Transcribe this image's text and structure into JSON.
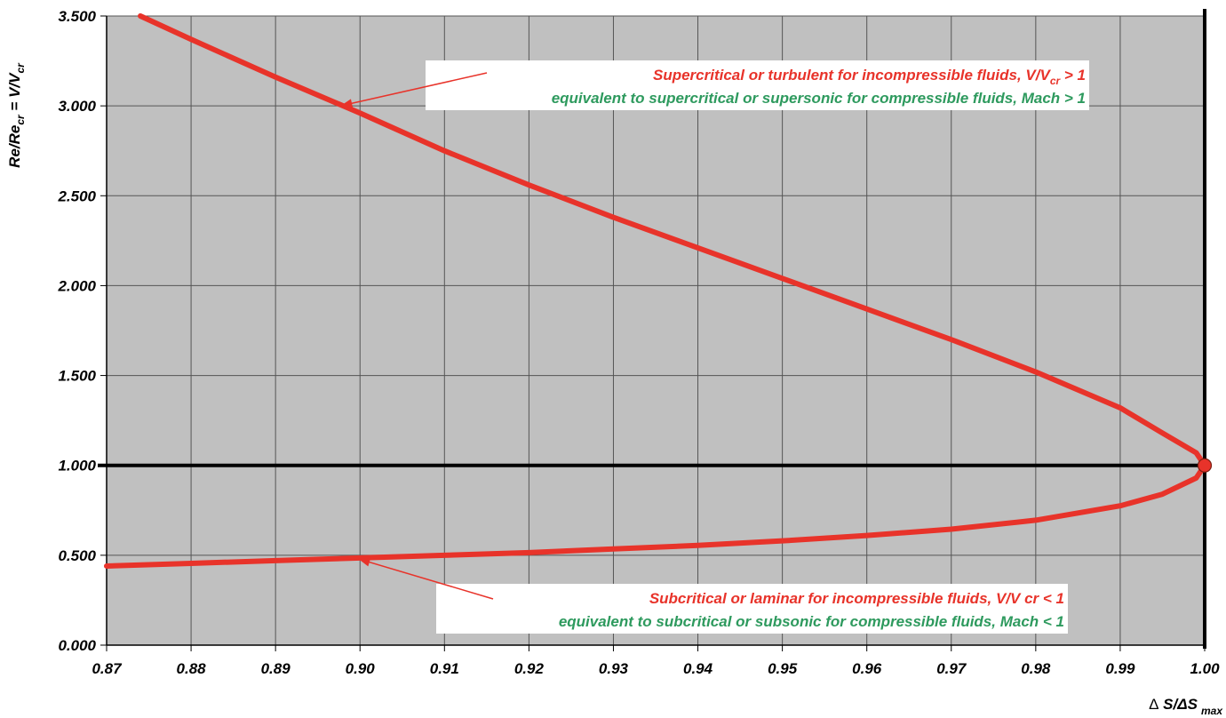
{
  "chart_data": {
    "type": "line",
    "x_axis": {
      "ticks": [
        0.87,
        0.88,
        0.89,
        0.9,
        0.91,
        0.92,
        0.93,
        0.94,
        0.95,
        0.96,
        0.97,
        0.98,
        0.99,
        1.0
      ],
      "tick_labels": [
        "0.87",
        "0.88",
        "0.89",
        "0.90",
        "0.91",
        "0.92",
        "0.93",
        "0.94",
        "0.95",
        "0.96",
        "0.97",
        "0.98",
        "0.99",
        "1.00"
      ],
      "range": [
        0.87,
        1.0
      ],
      "label": {
        "symbol": "Δ",
        "main": " S/ΔS",
        "subscript": "max"
      }
    },
    "y_axis": {
      "ticks": [
        0.0,
        0.5,
        1.0,
        1.5,
        2.0,
        2.5,
        3.0,
        3.5
      ],
      "tick_labels": [
        "0.000",
        "0.500",
        "1.000",
        "1.500",
        "2.000",
        "2.500",
        "3.000",
        "3.500"
      ],
      "range": [
        0.0,
        3.5
      ],
      "label": {
        "part1": "Re/Re",
        "sub1": "cr",
        "part2": " = V/V",
        "sub2": "cr"
      }
    },
    "grid": true,
    "plot_background": "#c0c0c0",
    "series": [
      {
        "color": "#e8332a",
        "points": [
          [
            0.87,
            0.44
          ],
          [
            0.88,
            0.455
          ],
          [
            0.89,
            0.47
          ],
          [
            0.9,
            0.485
          ],
          [
            0.91,
            0.5
          ],
          [
            0.92,
            0.515
          ],
          [
            0.93,
            0.535
          ],
          [
            0.94,
            0.555
          ],
          [
            0.95,
            0.58
          ],
          [
            0.96,
            0.61
          ],
          [
            0.97,
            0.645
          ],
          [
            0.98,
            0.695
          ],
          [
            0.99,
            0.775
          ],
          [
            0.995,
            0.84
          ],
          [
            0.999,
            0.93
          ],
          [
            1.0,
            1.0
          ],
          [
            0.999,
            1.07
          ],
          [
            0.995,
            1.18
          ],
          [
            0.99,
            1.32
          ],
          [
            0.98,
            1.52
          ],
          [
            0.97,
            1.7
          ],
          [
            0.96,
            1.87
          ],
          [
            0.95,
            2.04
          ],
          [
            0.94,
            2.21
          ],
          [
            0.93,
            2.38
          ],
          [
            0.92,
            2.56
          ],
          [
            0.91,
            2.75
          ],
          [
            0.9,
            2.96
          ],
          [
            0.89,
            3.16
          ],
          [
            0.88,
            3.37
          ],
          [
            0.874,
            3.5
          ]
        ]
      }
    ],
    "reference_lines": {
      "horizontal_y": 1.0,
      "vertical_x": 1.0,
      "color": "#000000"
    },
    "critical_point": {
      "x": 1.0,
      "y": 1.0,
      "color": "#e8332a"
    },
    "annotations": [
      {
        "line1": {
          "text": "Supercritical or turbulent for incompressible fluids, V/V",
          "sub": "cr",
          "tail": " > 1"
        },
        "line2": "equivalent to supercritical or supersonic for compressible fluids, Mach > 1",
        "arrow_target": {
          "x": 0.8977,
          "y": 3.0
        }
      },
      {
        "line1": {
          "text": "Subcritical or laminar for incompressible fluids, V/V cr < 1"
        },
        "line2": "equivalent to subcritical or subsonic for compressible fluids, Mach < 1",
        "arrow_target": {
          "x": 0.8998,
          "y": 0.48
        }
      }
    ],
    "colors": {
      "red": "#e8332a",
      "green": "#2e9a5e",
      "grid": "#555555"
    }
  }
}
